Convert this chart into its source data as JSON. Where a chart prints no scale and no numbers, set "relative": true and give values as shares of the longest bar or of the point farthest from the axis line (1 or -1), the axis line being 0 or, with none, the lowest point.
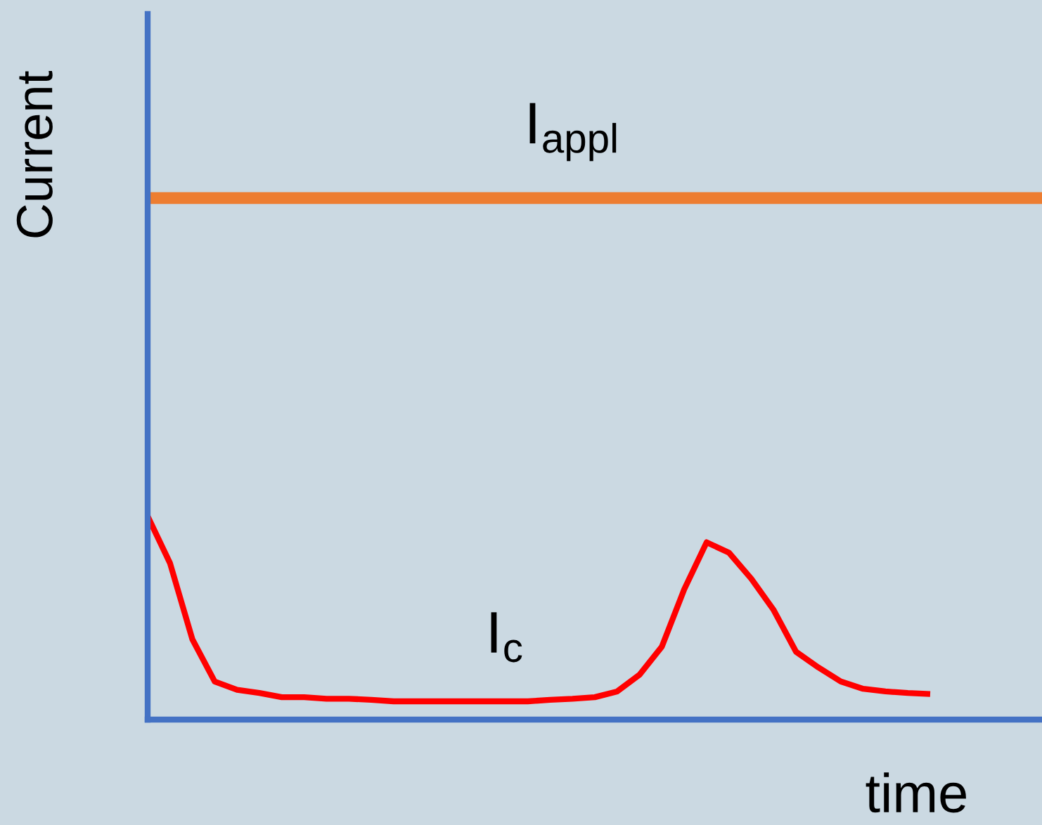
{
  "chart_data": {
    "type": "line",
    "relative": true,
    "xlabel": "time",
    "ylabel": "Current",
    "legend": false,
    "grid": false,
    "marker": "none",
    "line_style": "solid",
    "categories": [
      null,
      null,
      null,
      null,
      null,
      null,
      null,
      null,
      null,
      null,
      null,
      null,
      null,
      null,
      null,
      null,
      null,
      null,
      null,
      null,
      null,
      null,
      null,
      null,
      null,
      null,
      null,
      null,
      null,
      null,
      null,
      null,
      null,
      null,
      null,
      null,
      null,
      null,
      null,
      null,
      null
    ],
    "series": [
      {
        "name": "I$_{appl}$",
        "color": "#ed7d31",
        "values": [
          1,
          1,
          1,
          1,
          1,
          1,
          1,
          1,
          1,
          1,
          1,
          1,
          1,
          1,
          1,
          1,
          1,
          1,
          1,
          1,
          1,
          1,
          1,
          1,
          1,
          1,
          1,
          1,
          1,
          1,
          1,
          1,
          1,
          1,
          1,
          1,
          1,
          1,
          1,
          1,
          1
        ]
      },
      {
        "name": "I$_{c}$",
        "color": "#ff0000",
        "values": [
          0.39,
          0.3,
          0.154,
          0.073,
          0.057,
          0.051,
          0.043,
          0.043,
          0.04,
          0.04,
          0.038,
          0.035,
          0.035,
          0.035,
          0.035,
          0.035,
          0.035,
          0.035,
          0.038,
          0.04,
          0.043,
          0.054,
          0.086,
          0.14,
          0.25,
          0.34,
          0.32,
          0.27,
          0.21,
          0.13,
          0.1,
          0.073,
          0.059,
          0.054,
          0.051,
          0.049,
          null,
          null,
          null,
          null,
          null
        ]
      }
    ]
  }
}
